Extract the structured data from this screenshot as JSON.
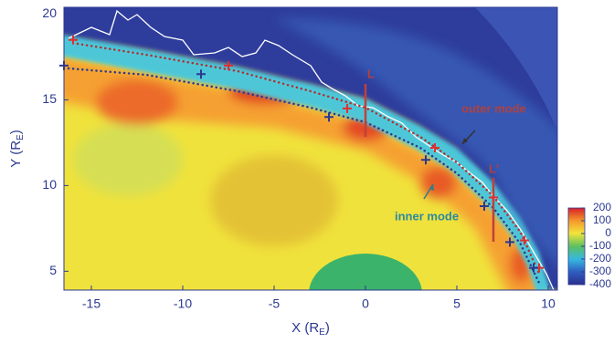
{
  "chart_data": {
    "type": "contour",
    "xlabel": [
      "X (R",
      "E",
      ")"
    ],
    "ylabel": [
      "Y (R",
      "E",
      ")"
    ],
    "xlim": [
      -16.5,
      10.5
    ],
    "ylim": [
      3.9,
      20.4
    ],
    "xticks": [
      -15,
      -10,
      -5,
      0,
      5,
      10
    ],
    "yticks": [
      5,
      10,
      15,
      20
    ],
    "clim": [
      -400,
      200
    ],
    "cticks": [
      200,
      100,
      0,
      -100,
      -200,
      -300,
      -400
    ],
    "annotations": [
      "outer mode",
      "inner mode",
      "L",
      "L'"
    ],
    "series": [
      {
        "color": "#e03030",
        "x": [
          -16,
          -7.5,
          -1,
          3.8,
          7,
          8.7,
          9.5
        ],
        "y": [
          18.5,
          17,
          14.5,
          12.2,
          9.3,
          6.8,
          5.2
        ]
      },
      {
        "color": "#2b3990",
        "x": [
          -16.5,
          -9,
          -2,
          3.3,
          6.5,
          7.9,
          9.2
        ],
        "y": [
          17,
          16.5,
          14,
          11.5,
          8.8,
          6.7,
          5.2
        ]
      }
    ]
  }
}
